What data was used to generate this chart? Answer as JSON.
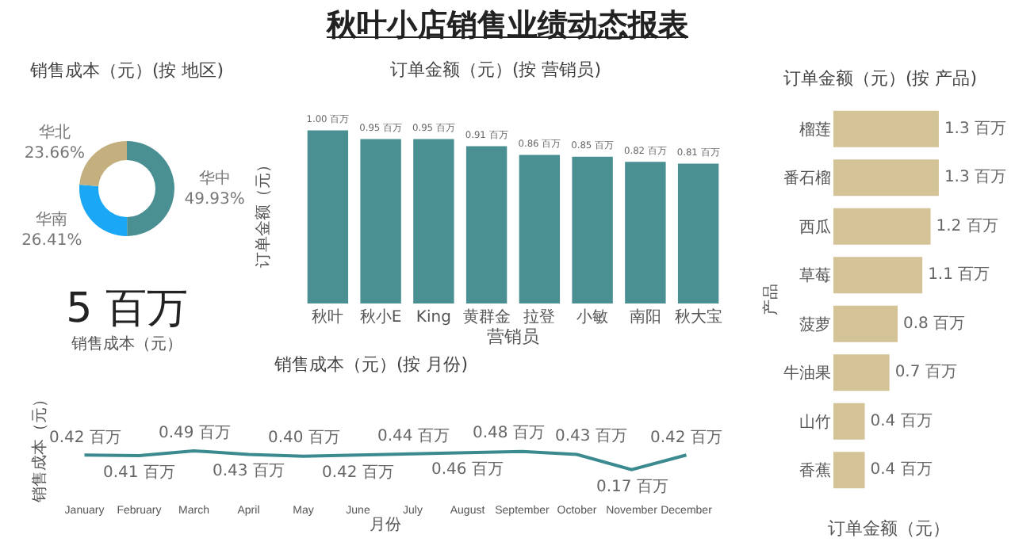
{
  "chart_data": [
    {
      "type": "other",
      "title": "秋叶小店销售业绩动态报表"
    },
    {
      "type": "donut",
      "title": "销售成本（元）(按 地区)",
      "categories": [
        "华中",
        "华南",
        "华北"
      ],
      "values": [
        49.93,
        26.41,
        23.66
      ],
      "colors": [
        "#4a9093",
        "#1aa7f5",
        "#c4b07e"
      ],
      "value_labels": [
        "49.93%",
        "26.41%",
        "23.66%"
      ],
      "legend": false
    },
    {
      "type": "other",
      "annotations": [
        "5 百万",
        "销售成本（元）"
      ]
    },
    {
      "type": "bar",
      "title": "订单金额（元）(按 营销员)",
      "xlabel": "营销员",
      "ylabel": "订单金额（元）",
      "categories": [
        "秋叶",
        "秋小E",
        "King",
        "黄群金",
        "拉登",
        "小敏",
        "南阳",
        "秋大宝"
      ],
      "series": [
        {
          "color": "#4a9093",
          "values": [
            1.0,
            0.95,
            0.95,
            0.91,
            0.86,
            0.85,
            0.82,
            0.81
          ],
          "value_labels": [
            "1.00 百万",
            "0.95 百万",
            "0.95 百万",
            "0.91 百万",
            "0.86 百万",
            "0.85 百万",
            "0.82 百万",
            "0.81 百万"
          ]
        }
      ],
      "tick_labels": "x",
      "legend": false
    },
    {
      "type": "bar",
      "orientation": "horizontal",
      "title": "订单金额（元）(按 产品)",
      "xlabel": "订单金额（元）",
      "ylabel": "产品",
      "categories": [
        "榴莲",
        "番石榴",
        "西瓜",
        "草莓",
        "菠萝",
        "牛油果",
        "山竹",
        "香蕉"
      ],
      "series": [
        {
          "color": "#d3c396",
          "values": [
            1.3,
            1.3,
            1.2,
            1.1,
            0.8,
            0.7,
            0.4,
            0.4
          ],
          "value_labels": [
            "1.3 百万",
            "1.3 百万",
            "1.2 百万",
            "1.1 百万",
            "0.8 百万",
            "0.7 百万",
            "0.4 百万",
            "0.4 百万"
          ]
        }
      ],
      "tick_labels": "y",
      "legend": false
    },
    {
      "type": "line",
      "title": "销售成本（元）(按 月份)",
      "xlabel": "月份",
      "ylabel": "销售成本（元）",
      "categories": [
        "January",
        "February",
        "March",
        "April",
        "May",
        "June",
        "July",
        "August",
        "September",
        "October",
        "November",
        "December"
      ],
      "series": [
        {
          "color": "#3a8a8f",
          "values": [
            0.42,
            0.41,
            0.49,
            0.43,
            0.4,
            0.42,
            0.44,
            0.46,
            0.48,
            0.43,
            0.17,
            0.42
          ],
          "value_labels": [
            "0.42 百万",
            "0.41 百万",
            "0.49 百万",
            "0.43 百万",
            "0.40 百万",
            "0.42 百万",
            "0.44 百万",
            "0.46 百万",
            "0.48 百万",
            "0.43 百万",
            "0.17 百万",
            "0.42 百万"
          ]
        }
      ],
      "marker": "none",
      "line_style": "solid",
      "tick_labels": "x",
      "legend": false
    }
  ]
}
